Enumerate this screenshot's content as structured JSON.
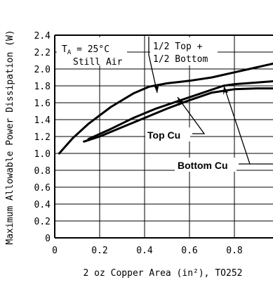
{
  "chart_data": {
    "type": "line",
    "title": "",
    "xlabel": "2 oz Copper Area (in²), TO252",
    "ylabel": "Maximum Allowable Power Dissipation (W)",
    "xlim": [
      0,
      1.0
    ],
    "ylim": [
      0,
      2.4
    ],
    "x_ticks": [
      "0",
      "0.2",
      "0.4",
      "0.6",
      "0.8"
    ],
    "y_ticks": [
      "0",
      "0.2",
      "0.4",
      "0.6",
      "0.8",
      "1.0",
      "1.2",
      "1.4",
      "1.6",
      "1.8",
      "2.0",
      "2.2",
      "2.4"
    ],
    "grid": true,
    "series": [
      {
        "name": "1/2 Top + 1/2 Bottom",
        "x": [
          0.02,
          0.08,
          0.15,
          0.25,
          0.35,
          0.42,
          0.5,
          0.6,
          0.7,
          0.8,
          0.9,
          1.0
        ],
        "y": [
          1.0,
          1.18,
          1.35,
          1.55,
          1.71,
          1.79,
          1.83,
          1.86,
          1.9,
          1.96,
          2.02,
          2.08
        ]
      },
      {
        "name": "Top Cu",
        "x": [
          0.15,
          0.25,
          0.35,
          0.45,
          0.55,
          0.65,
          0.75,
          0.8,
          0.9,
          1.0
        ],
        "y": [
          1.17,
          1.29,
          1.42,
          1.53,
          1.62,
          1.71,
          1.8,
          1.82,
          1.84,
          1.86
        ]
      },
      {
        "name": "Bottom Cu",
        "x": [
          0.13,
          0.2,
          0.3,
          0.4,
          0.5,
          0.6,
          0.7,
          0.8,
          0.9,
          1.0
        ],
        "y": [
          1.14,
          1.2,
          1.31,
          1.42,
          1.53,
          1.63,
          1.72,
          1.76,
          1.77,
          1.77
        ]
      }
    ],
    "annotations": {
      "ta_prefix": "T",
      "ta_sub": "A",
      "ta_suffix": " = 25°C",
      "still_air": "Still Air",
      "half_top": "1/2 Top +",
      "half_bottom": "1/2 Bottom",
      "top_cu": "Top Cu",
      "bottom_cu": "Bottom Cu"
    }
  }
}
